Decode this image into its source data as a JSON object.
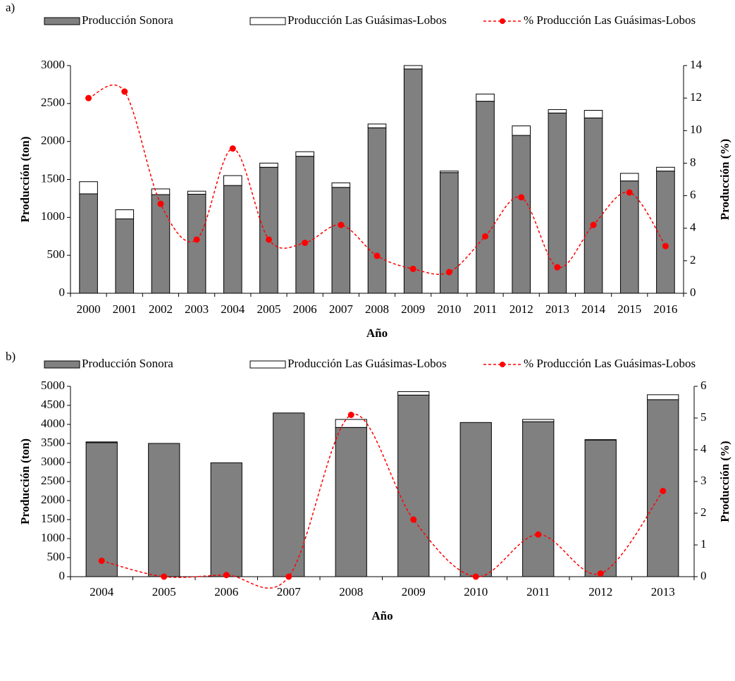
{
  "chart_data": [
    {
      "type": "bar",
      "label": "a)",
      "x_label": "Año",
      "y_label": "Producción (ton)",
      "y2_label": "Producción (%)",
      "categories": [
        "2000",
        "2001",
        "2002",
        "2003",
        "2004",
        "2005",
        "2006",
        "2007",
        "2008",
        "2009",
        "2010",
        "2011",
        "2012",
        "2013",
        "2014",
        "2015",
        "2016"
      ],
      "series": [
        {
          "name": "Producción Sonora",
          "color": "#808080",
          "stack": true,
          "values": [
            1310,
            980,
            1300,
            1305,
            1420,
            1660,
            1805,
            1395,
            2180,
            2955,
            1590,
            2530,
            2080,
            2375,
            2310,
            1480,
            1610
          ]
        },
        {
          "name": "Producción Las Guásimas-Lobos",
          "color": "#ffffff",
          "stack": true,
          "values": [
            160,
            120,
            75,
            40,
            130,
            55,
            60,
            60,
            50,
            45,
            20,
            95,
            125,
            45,
            100,
            100,
            50
          ]
        },
        {
          "name": "% Producción Las Guásimas-Lobos",
          "color": "#ff0000",
          "axis": "y2",
          "line": "dashed",
          "values": [
            12.0,
            12.4,
            5.5,
            3.3,
            8.9,
            3.3,
            3.1,
            4.2,
            2.3,
            1.5,
            1.3,
            3.5,
            5.9,
            1.6,
            4.2,
            6.2,
            2.9
          ]
        }
      ],
      "ylim": [
        0,
        3000
      ],
      "yticks": [
        0,
        500,
        1000,
        1500,
        2000,
        2500,
        3000
      ],
      "y2lim": [
        0,
        14
      ],
      "y2ticks": [
        0,
        2,
        4,
        6,
        8,
        10,
        12,
        14
      ],
      "grid": false
    },
    {
      "type": "bar",
      "label": "b)",
      "x_label": "Año",
      "y_label": "Producción (ton)",
      "y2_label": "Producción (%)",
      "categories": [
        "2004",
        "2005",
        "2006",
        "2007",
        "2008",
        "2009",
        "2010",
        "2011",
        "2012",
        "2013"
      ],
      "series": [
        {
          "name": "Producción Sonora",
          "color": "#808080",
          "stack": true,
          "values": [
            3520,
            3500,
            2990,
            4300,
            3920,
            4770,
            4050,
            4070,
            3590,
            4650
          ]
        },
        {
          "name": "Producción Las Guásimas-Lobos",
          "color": "#ffffff",
          "stack": true,
          "values": [
            20,
            0,
            0,
            0,
            210,
            90,
            0,
            60,
            10,
            130
          ]
        },
        {
          "name": "% Producción Las Guásimas-Lobos",
          "color": "#ff0000",
          "axis": "y2",
          "line": "dashed",
          "values": [
            0.5,
            0,
            0.05,
            0,
            5.1,
            1.8,
            0,
            1.33,
            0.1,
            2.7
          ]
        }
      ],
      "ylim": [
        0,
        5000
      ],
      "yticks": [
        0,
        500,
        1000,
        1500,
        2000,
        2500,
        3000,
        3500,
        4000,
        4500,
        5000
      ],
      "y2lim": [
        0,
        6
      ],
      "y2ticks": [
        0,
        1,
        2,
        3,
        4,
        5,
        6
      ],
      "grid": false
    }
  ]
}
